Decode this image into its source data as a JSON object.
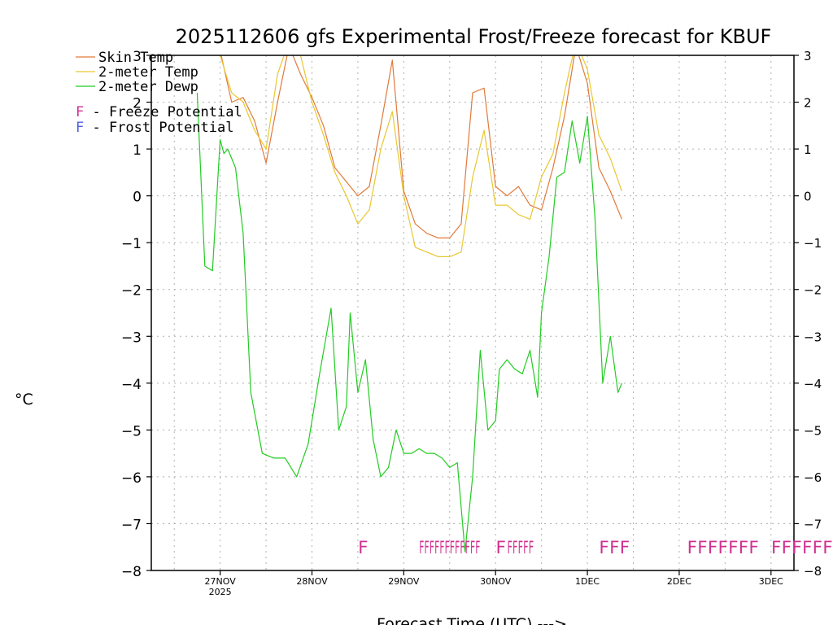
{
  "chart_data": {
    "type": "line",
    "title": "2025112606 gfs Experimental Frost/Freeze forecast for KBUF",
    "ylabel": "°C",
    "xlabel": "Forecast Time (UTC) --->",
    "ylim": [
      -8,
      3
    ],
    "yticks": [
      3,
      2,
      1,
      0,
      -1,
      -2,
      -3,
      -4,
      -5,
      -6,
      -7,
      -8
    ],
    "y_tick_labels": [
      "3",
      "2",
      "1",
      "0",
      "−1",
      "−2",
      "−3",
      "−4",
      "−5",
      "−6",
      "−7",
      "−8"
    ],
    "x_unit": "hours from 2025-11-26 00 UTC",
    "xlim": [
      6,
      174
    ],
    "xticks": [
      {
        "hour": 24,
        "label": "27NOV",
        "sublabel": "2025"
      },
      {
        "hour": 48,
        "label": "28NOV",
        "sublabel": ""
      },
      {
        "hour": 72,
        "label": "29NOV",
        "sublabel": ""
      },
      {
        "hour": 96,
        "label": "30NOV",
        "sublabel": ""
      },
      {
        "hour": 120,
        "label": "1DEC",
        "sublabel": ""
      },
      {
        "hour": 144,
        "label": "2DEC",
        "sublabel": ""
      },
      {
        "hour": 168,
        "label": "3DEC",
        "sublabel": ""
      }
    ],
    "x_minor_grid": [
      12,
      36,
      60,
      84,
      108,
      132,
      156
    ],
    "legend": {
      "placement": "top-left",
      "entries": [
        {
          "label": "Skin Temp",
          "color": "#e07a3a"
        },
        {
          "label": "2-meter Temp",
          "color": "#e8c830"
        },
        {
          "label": "2-meter Dewp",
          "color": "#22cc22"
        }
      ],
      "markers": [
        {
          "symbol": "F",
          "text": " - Freeze Potential",
          "color": "#d03090"
        },
        {
          "symbol": "F",
          "text": " - Frost Potential",
          "color": "#5060e0"
        }
      ]
    },
    "series": [
      {
        "name": "Skin Temp",
        "color": "#e07a3a",
        "x": [
          18,
          21,
          24,
          27,
          30,
          33,
          36,
          39,
          42,
          45,
          48,
          51,
          54,
          57,
          60,
          63,
          66,
          69,
          72,
          75,
          78,
          81,
          84,
          87,
          90,
          93,
          96,
          99,
          102,
          105,
          108,
          111,
          114,
          117,
          120,
          123,
          126,
          129
        ],
        "y": [
          3.3,
          3.0,
          3.1,
          2.0,
          2.1,
          1.6,
          0.7,
          2.0,
          3.2,
          2.6,
          2.1,
          1.5,
          0.6,
          0.3,
          0.0,
          0.2,
          1.5,
          2.9,
          0.1,
          -0.6,
          -0.8,
          -0.9,
          -0.9,
          -0.6,
          2.2,
          2.3,
          0.2,
          0.0,
          0.2,
          -0.2,
          -0.3,
          0.6,
          1.7,
          3.2,
          2.4,
          0.6,
          0.1,
          -0.5
        ]
      },
      {
        "name": "2-meter Temp",
        "color": "#e8c830",
        "x": [
          18,
          21,
          24,
          27,
          30,
          33,
          36,
          39,
          42,
          45,
          48,
          51,
          54,
          57,
          60,
          63,
          66,
          69,
          72,
          75,
          78,
          81,
          84,
          87,
          90,
          93,
          96,
          99,
          102,
          105,
          108,
          111,
          114,
          117,
          120,
          123,
          126,
          129
        ],
        "y": [
          3.4,
          3.3,
          3.0,
          2.2,
          2.0,
          1.4,
          1.0,
          2.6,
          3.3,
          3.0,
          2.0,
          1.3,
          0.5,
          0.0,
          -0.6,
          -0.3,
          1.0,
          1.8,
          0.0,
          -1.1,
          -1.2,
          -1.3,
          -1.3,
          -1.2,
          0.4,
          1.4,
          -0.2,
          -0.2,
          -0.4,
          -0.5,
          0.4,
          0.9,
          2.2,
          3.3,
          2.7,
          1.3,
          0.8,
          0.1
        ]
      },
      {
        "name": "2-meter Dewp",
        "color": "#22cc22",
        "x": [
          18,
          20,
          22,
          24,
          25,
          26,
          28,
          30,
          32,
          35,
          38,
          41,
          44,
          47,
          50,
          53,
          55,
          57,
          58,
          60,
          62,
          64,
          66,
          68,
          70,
          72,
          74,
          76,
          78,
          80,
          82,
          84,
          86,
          88,
          90,
          92,
          94,
          96,
          97,
          99,
          101,
          103,
          105,
          107,
          108,
          110,
          112,
          114,
          116,
          118,
          120,
          122,
          124,
          126,
          128,
          129
        ],
        "y": [
          2.2,
          -1.5,
          -1.6,
          1.2,
          0.9,
          1.0,
          0.6,
          -0.8,
          -4.2,
          -5.5,
          -5.6,
          -5.6,
          -6.0,
          -5.3,
          -3.8,
          -2.4,
          -5.0,
          -4.5,
          -2.5,
          -4.2,
          -3.5,
          -5.2,
          -6.0,
          -5.8,
          -5.0,
          -5.5,
          -5.5,
          -5.4,
          -5.5,
          -5.5,
          -5.6,
          -5.8,
          -5.7,
          -7.6,
          -6.0,
          -3.3,
          -5.0,
          -4.8,
          -3.7,
          -3.5,
          -3.7,
          -3.8,
          -3.3,
          -4.3,
          -2.5,
          -1.3,
          0.4,
          0.5,
          1.6,
          0.7,
          1.7,
          -0.5,
          -4.0,
          -3.0,
          -4.2,
          -4.0
        ]
      }
    ],
    "potential_markers": [
      {
        "hour": 60,
        "value": -7.5,
        "text": "F",
        "color": "#d03090"
      },
      {
        "hour": 76,
        "value": -7.5,
        "text": "FFFFFFFFFFFF",
        "color": "#d03090",
        "span_end": 92
      },
      {
        "hour": 96,
        "value": -7.5,
        "text": "F",
        "color": "#d03090"
      },
      {
        "hour": 99,
        "value": -7.5,
        "text": "FFFFF",
        "color": "#d03090",
        "span_end": 106
      },
      {
        "hour": 123,
        "value": -7.5,
        "text": "FFF",
        "color": "#d03090"
      },
      {
        "hour": 146,
        "value": -7.5,
        "text": "FFFFFFF",
        "color": "#d03090"
      },
      {
        "hour": 168,
        "value": -7.5,
        "text": "FFFFFFF",
        "color": "#d03090"
      }
    ]
  }
}
